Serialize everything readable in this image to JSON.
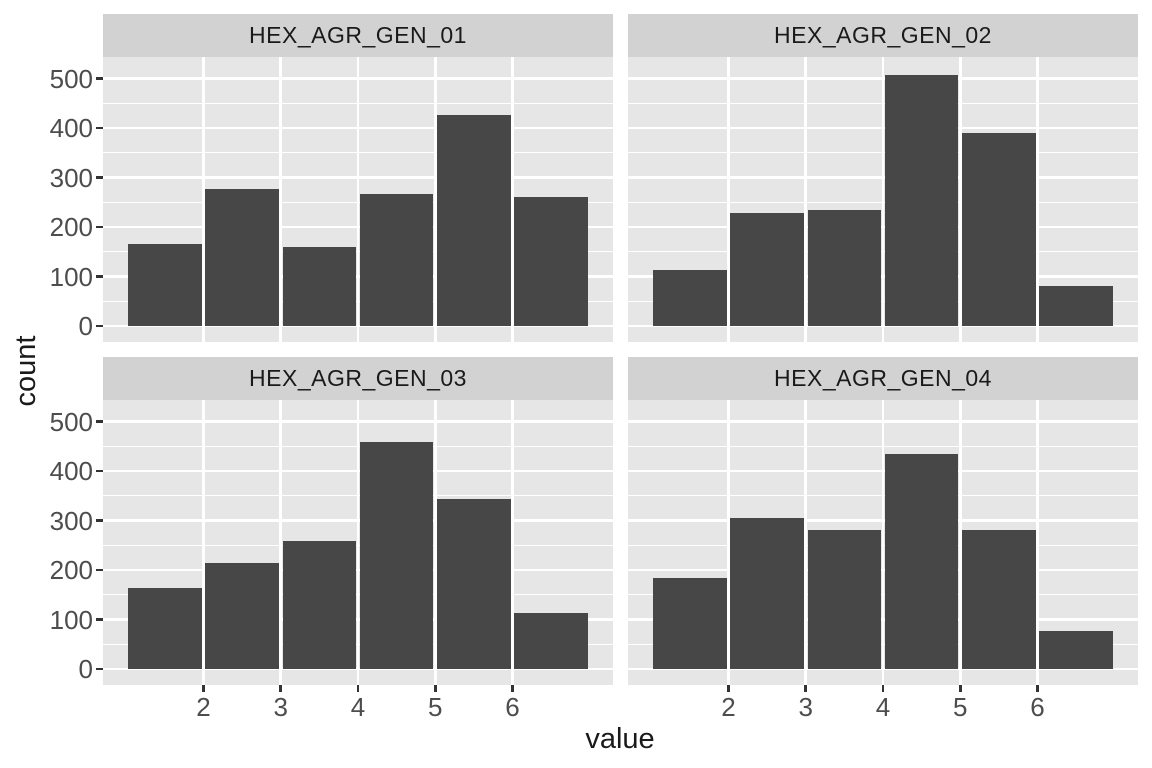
{
  "chart_data": {
    "type": "bar",
    "subtype": "faceted_histogram",
    "title": "",
    "xlabel": "value",
    "ylabel": "count",
    "legend": "none",
    "grid": "white major and minor horizontal lines, white major vertical lines on grey panel",
    "facets": [
      {
        "label": "HEX_AGR_GEN_01",
        "counts": [
          165,
          276,
          160,
          266,
          426,
          261
        ]
      },
      {
        "label": "HEX_AGR_GEN_02",
        "counts": [
          113,
          228,
          234,
          508,
          389,
          80
        ]
      },
      {
        "label": "HEX_AGR_GEN_03",
        "counts": [
          163,
          215,
          258,
          459,
          344,
          114
        ]
      },
      {
        "label": "HEX_AGR_GEN_04",
        "counts": [
          184,
          305,
          281,
          435,
          281,
          76
        ]
      }
    ],
    "bin_centers": [
      1.5,
      2.5,
      3.5,
      4.5,
      5.5,
      6.5
    ],
    "bin_width": 1,
    "x_ticks": [
      2,
      3,
      4,
      5,
      6
    ],
    "y_ticks": [
      0,
      100,
      200,
      300,
      400,
      500
    ],
    "y_minor_ticks": [
      50,
      150,
      250,
      350,
      450,
      550
    ],
    "xlim": [
      0.7,
      7.3
    ],
    "ylim": [
      -28,
      532
    ]
  },
  "style": {
    "bar_color": "#474747",
    "panel_background": "#E6E6E6",
    "strip_background": "#D2D2D2",
    "grid_color": "#FFFFFF",
    "tick_label_color": "#4D4D4D",
    "axis_title_color": "#1A1A1A",
    "strip_text_color": "#1A1A1A",
    "figure_background": "#FFFFFF"
  }
}
